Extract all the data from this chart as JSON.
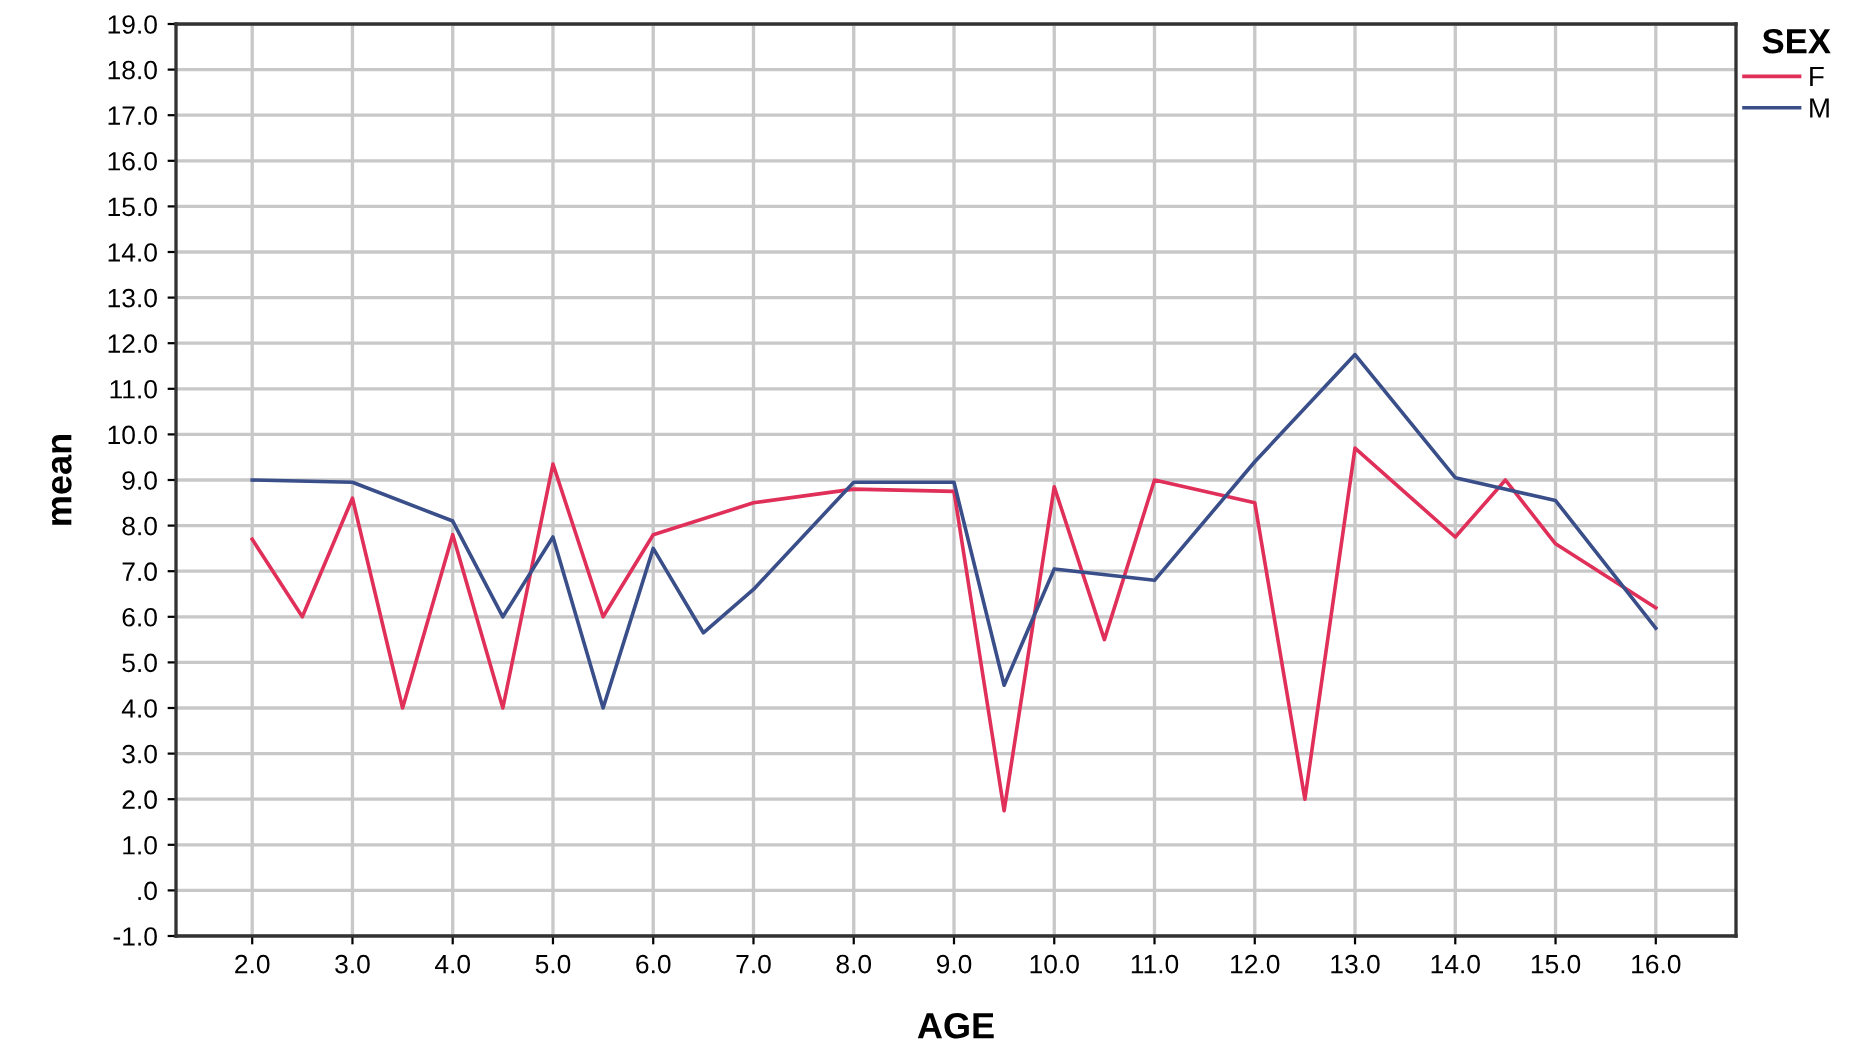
{
  "chart_data": {
    "type": "line",
    "xlabel": "AGE",
    "ylabel": "mean",
    "legend_title": "SEX",
    "legend": "top right",
    "grid": true,
    "marker": "none",
    "line_style": "solid",
    "xlim": [
      1.24,
      16.8
    ],
    "xticks": [
      {
        "value": 2,
        "label": "2.0"
      },
      {
        "value": 3,
        "label": "3.0"
      },
      {
        "value": 4,
        "label": "4.0"
      },
      {
        "value": 5,
        "label": "5.0"
      },
      {
        "value": 6,
        "label": "6.0"
      },
      {
        "value": 7,
        "label": "7.0"
      },
      {
        "value": 8,
        "label": "8.0"
      },
      {
        "value": 9,
        "label": "9.0"
      },
      {
        "value": 10,
        "label": "10.0"
      },
      {
        "value": 11,
        "label": "11.0"
      },
      {
        "value": 12,
        "label": "12.0"
      },
      {
        "value": 13,
        "label": "13.0"
      },
      {
        "value": 14,
        "label": "14.0"
      },
      {
        "value": 15,
        "label": "15.0"
      },
      {
        "value": 16,
        "label": "16.0"
      }
    ],
    "ylim": [
      -1,
      19
    ],
    "yticks": [
      {
        "value": -1,
        "label": "-1.0"
      },
      {
        "value": 0,
        "label": ".0"
      },
      {
        "value": 1,
        "label": "1.0"
      },
      {
        "value": 2,
        "label": "2.0"
      },
      {
        "value": 3,
        "label": "3.0"
      },
      {
        "value": 4,
        "label": "4.0"
      },
      {
        "value": 5,
        "label": "5.0"
      },
      {
        "value": 6,
        "label": "6.0"
      },
      {
        "value": 7,
        "label": "7.0"
      },
      {
        "value": 8,
        "label": "8.0"
      },
      {
        "value": 9,
        "label": "9.0"
      },
      {
        "value": 10,
        "label": "10.0"
      },
      {
        "value": 11,
        "label": "11.0"
      },
      {
        "value": 12,
        "label": "12.0"
      },
      {
        "value": 13,
        "label": "13.0"
      },
      {
        "value": 14,
        "label": "14.0"
      },
      {
        "value": 15,
        "label": "15.0"
      },
      {
        "value": 16,
        "label": "16.0"
      },
      {
        "value": 17,
        "label": "17.0"
      },
      {
        "value": 18,
        "label": "18.0"
      },
      {
        "value": 19,
        "label": "19.0"
      }
    ],
    "series": [
      {
        "name": "F",
        "color": "#e0305a",
        "x": [
          2,
          2.5,
          3,
          3.5,
          4,
          4.5,
          5,
          5.5,
          6,
          7,
          8,
          9,
          9.5,
          10,
          10.5,
          11,
          12,
          12.5,
          13,
          14,
          14.5,
          15,
          16
        ],
        "values": [
          7.7,
          6.0,
          8.6,
          4.0,
          7.8,
          4.0,
          9.35,
          6.0,
          7.8,
          8.5,
          8.8,
          8.75,
          1.75,
          8.85,
          5.5,
          9.0,
          8.5,
          2.0,
          9.7,
          7.75,
          9.0,
          7.6,
          6.2
        ]
      },
      {
        "name": "M",
        "color": "#3a4f8a",
        "x": [
          2,
          3,
          4,
          4.5,
          5,
          5.5,
          6,
          6.5,
          7,
          8,
          9,
          9.5,
          10,
          11,
          12,
          13,
          14,
          15,
          16
        ],
        "values": [
          9.0,
          8.95,
          8.1,
          6.0,
          7.75,
          4.0,
          7.5,
          5.65,
          6.6,
          8.95,
          8.95,
          4.5,
          7.05,
          6.8,
          9.4,
          11.75,
          9.05,
          8.55,
          5.75
        ]
      }
    ]
  }
}
